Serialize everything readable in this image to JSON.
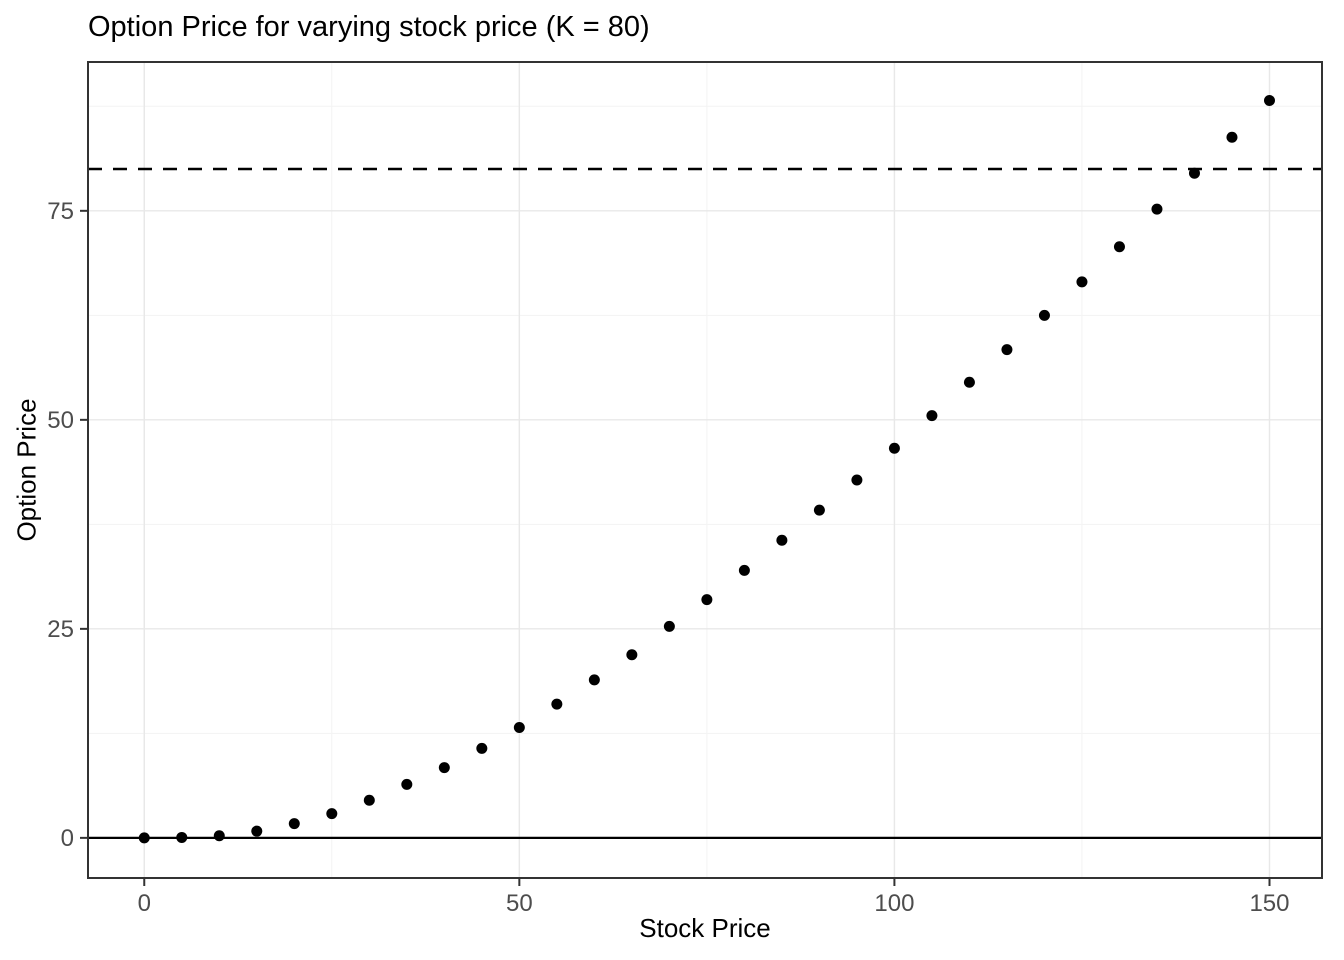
{
  "chart_data": {
    "type": "scatter",
    "title": "Option Price for varying stock price (K = 80)",
    "xlabel": "Stock Price",
    "ylabel": "Option Price",
    "x": [
      0,
      5,
      10,
      15,
      20,
      25,
      30,
      35,
      40,
      45,
      50,
      55,
      60,
      65,
      70,
      75,
      80,
      85,
      90,
      95,
      100,
      105,
      110,
      115,
      120,
      125,
      130,
      135,
      140,
      145,
      150
    ],
    "y": [
      0,
      0.05,
      0.25,
      0.8,
      1.7,
      2.9,
      4.5,
      6.4,
      8.4,
      10.7,
      13.2,
      16.0,
      18.9,
      21.9,
      25.3,
      28.5,
      32.0,
      35.6,
      39.2,
      42.8,
      46.6,
      50.5,
      54.5,
      58.4,
      62.5,
      66.5,
      70.7,
      75.2,
      79.5,
      83.8,
      88.2
    ],
    "xlim": [
      -7.5,
      157
    ],
    "ylim": [
      -4.8,
      92.8
    ],
    "x_ticks": [
      0,
      50,
      100,
      150
    ],
    "y_ticks": [
      0,
      25,
      50,
      75
    ],
    "x_minor_ticks": [
      25,
      75,
      125
    ],
    "y_minor_ticks": [
      12.5,
      37.5,
      62.5,
      87.5
    ],
    "hlines": [
      {
        "y": 80,
        "style": "dashed",
        "name": "strike-price-line"
      },
      {
        "y": 0,
        "style": "solid",
        "name": "zero-line"
      }
    ],
    "grid": true,
    "legend": "none",
    "point_color": "#000000",
    "colors": {
      "panel_background": "#ffffff",
      "grid_major": "#e8e8e8",
      "grid_minor": "#f3f3f3",
      "panel_border": "#333333",
      "tick": "#333333",
      "tick_label": "#4d4d4d",
      "line": "#000000"
    }
  }
}
